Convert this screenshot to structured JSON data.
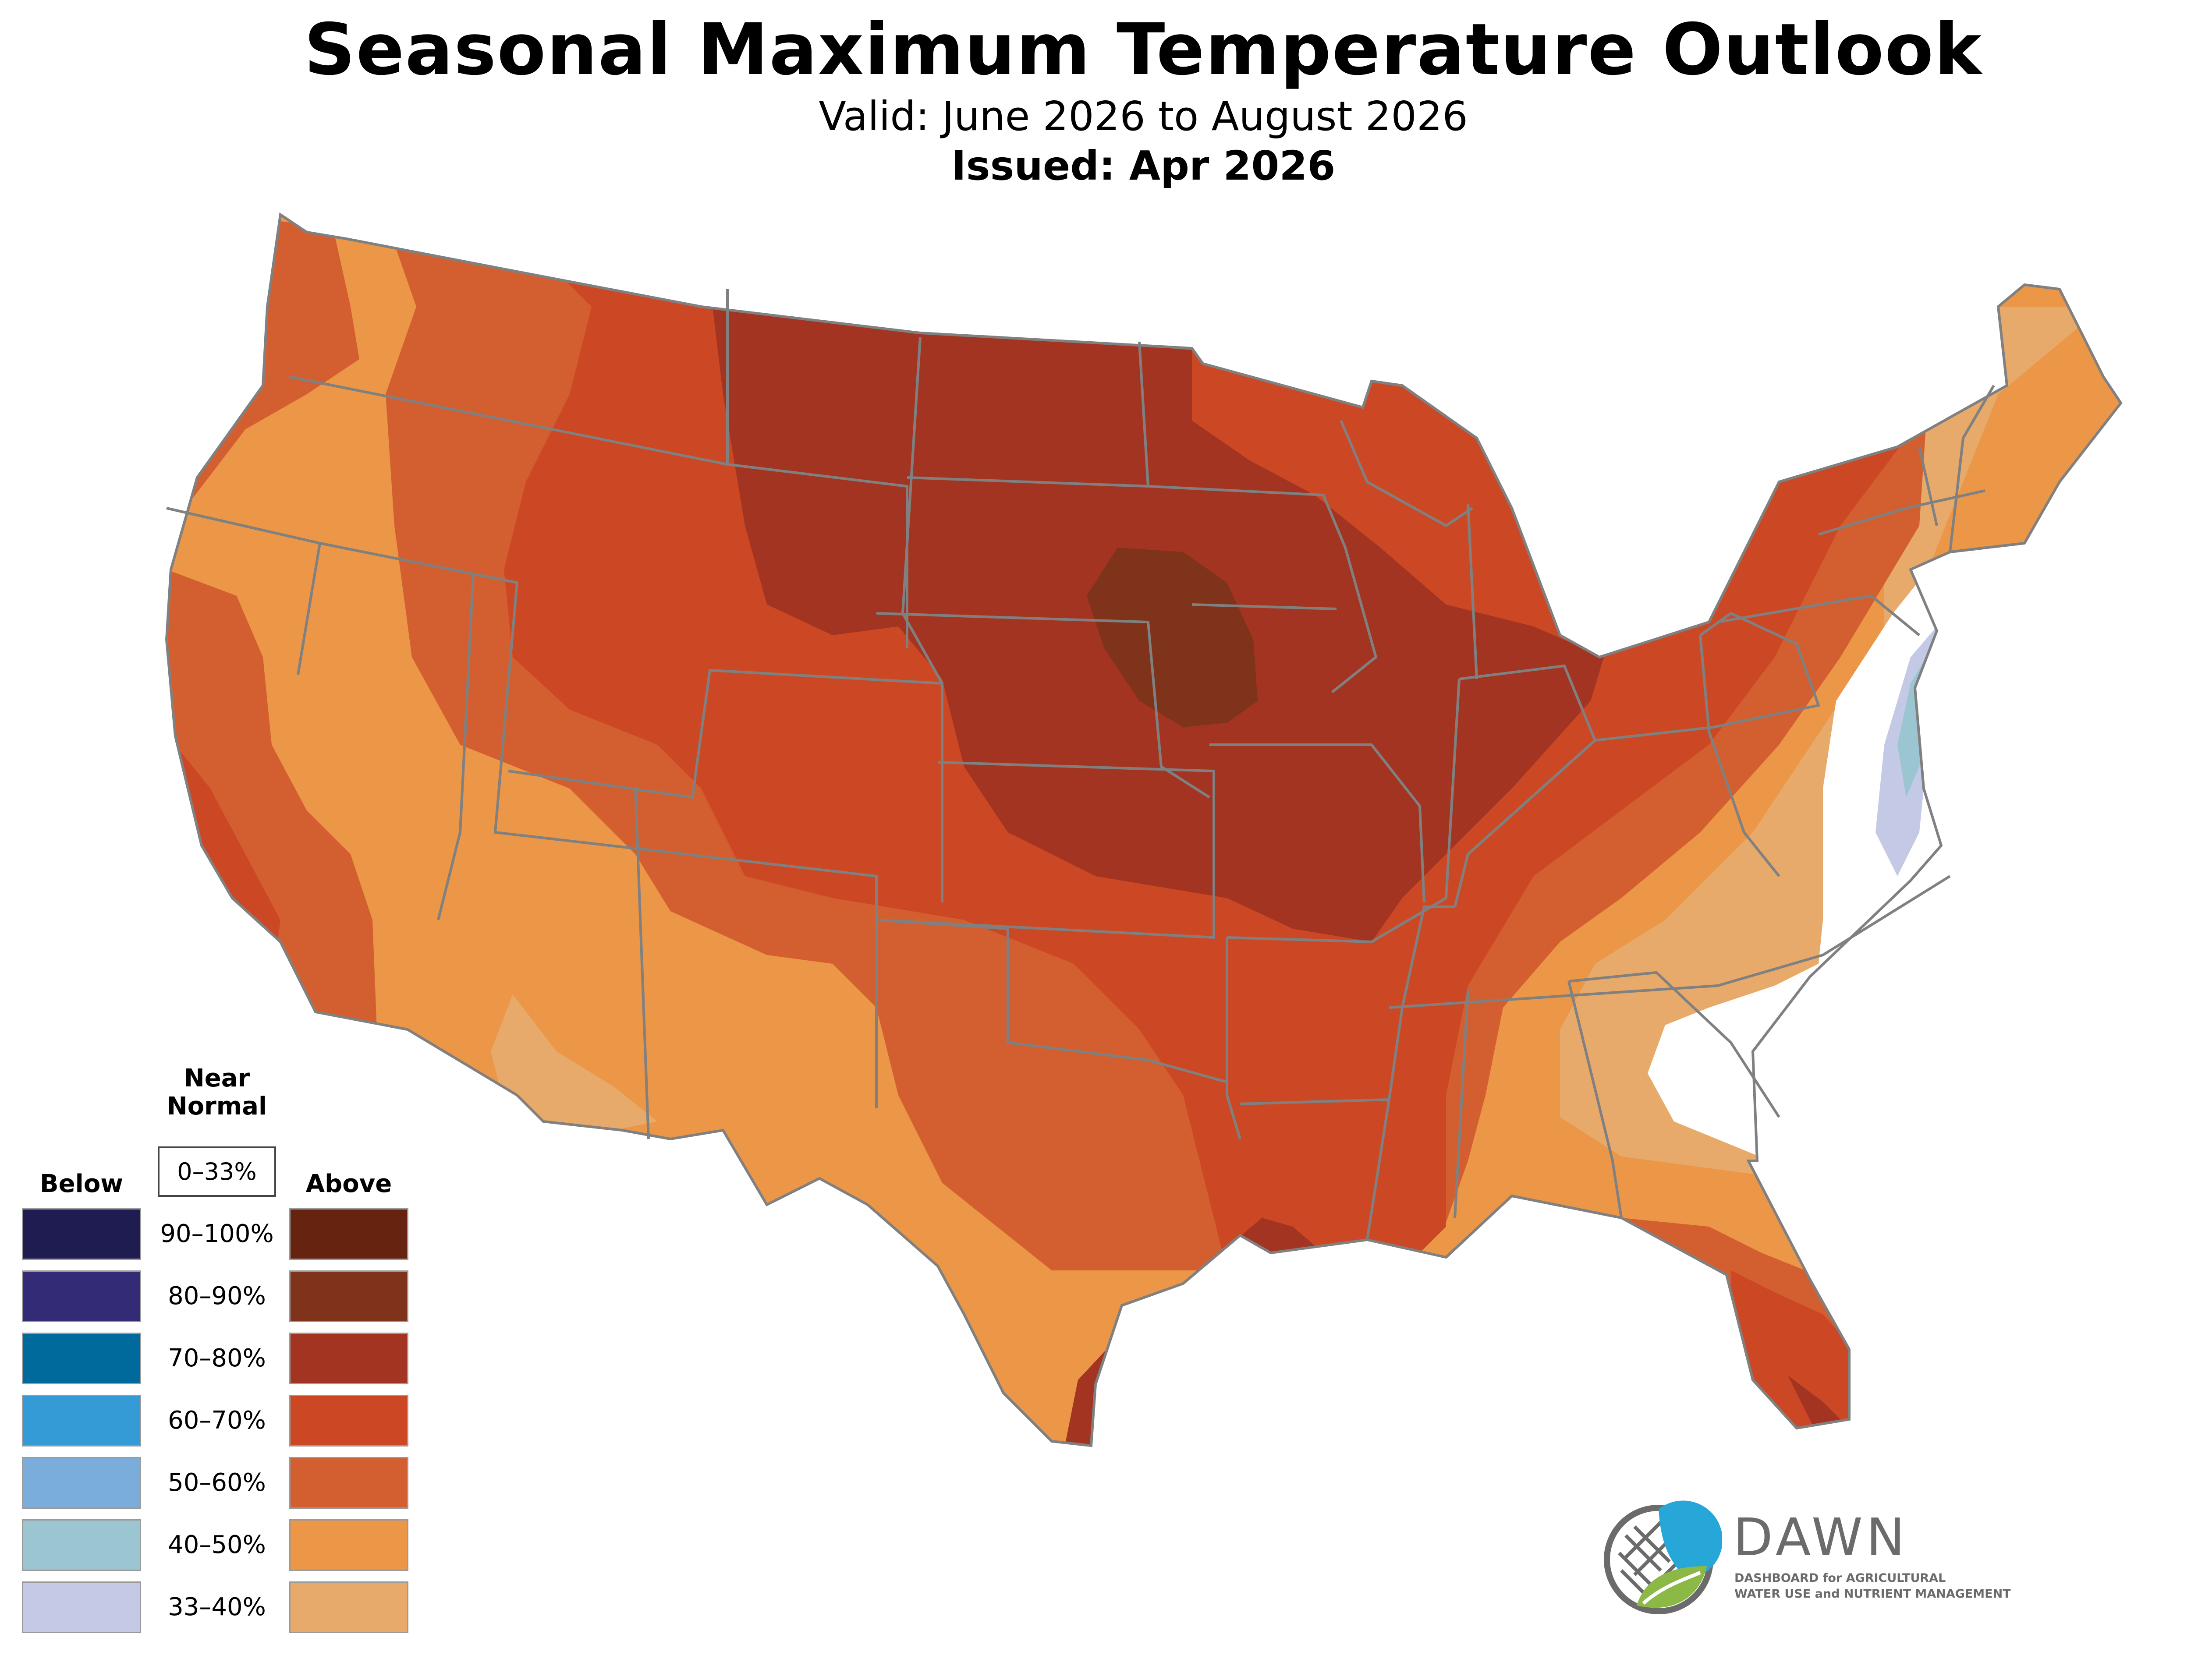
{
  "header": {
    "title": "Seasonal Maximum Temperature Outlook",
    "valid": "Valid: June 2026 to August 2026",
    "issued": "Issued: Apr 2026"
  },
  "legend": {
    "below_label": "Below",
    "near_normal_label_1": "Near",
    "near_normal_label_2": "Normal",
    "near_normal_range": "0–33%",
    "above_label": "Above",
    "rows": [
      {
        "range": "90–100%",
        "below_color": "#1f1c52",
        "above_color": "#66230f"
      },
      {
        "range": "80–90%",
        "below_color": "#332b75",
        "above_color": "#7e331a"
      },
      {
        "range": "70–80%",
        "below_color": "#016a9d",
        "above_color": "#a33421"
      },
      {
        "range": "60–70%",
        "below_color": "#349bd6",
        "above_color": "#cc4824"
      },
      {
        "range": "50–60%",
        "below_color": "#7aaddb",
        "above_color": "#d35f31"
      },
      {
        "range": "40–50%",
        "below_color": "#9bc5d0",
        "above_color": "#ec9647"
      },
      {
        "range": "33–40%",
        "below_color": "#c4cae6",
        "above_color": "#e7aa6b"
      }
    ]
  },
  "map": {
    "region": "Contiguous United States",
    "colors": {
      "near_normal": "#ffffff",
      "above_33_40": "#e7aa6b",
      "above_40_50": "#ec9647",
      "above_50_60": "#d35f31",
      "above_60_70": "#cc4824",
      "above_70_80": "#a33421",
      "above_80_90": "#7e331a",
      "below_33_40": "#c4cae6",
      "below_40_50": "#9bc5d0",
      "border": "#808080"
    }
  },
  "brand": {
    "name": "DAWN",
    "tagline_1": "DASHBOARD for AGRICULTURAL",
    "tagline_2": "WATER USE and NUTRIENT MANAGEMENT",
    "blue": "#27a7d8",
    "green": "#8cb845",
    "gray": "#6b6b6b"
  }
}
